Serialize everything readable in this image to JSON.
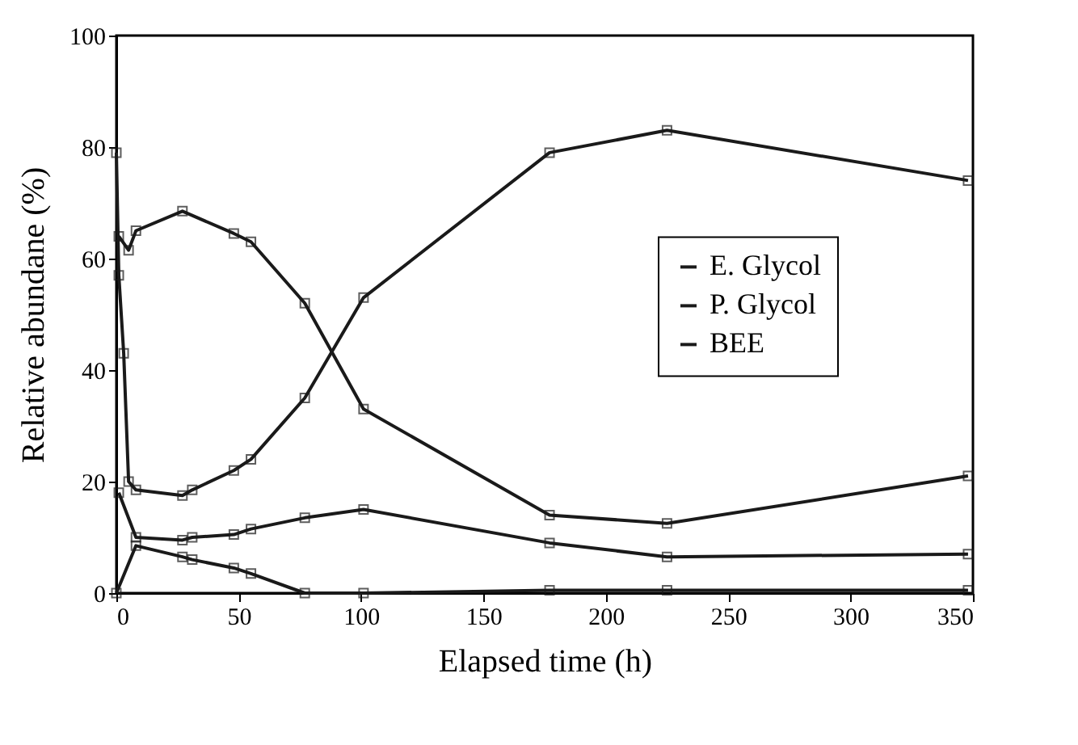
{
  "chart_data": {
    "type": "line",
    "xlabel": "Elapsed  time (h)",
    "ylabel": "Relative  abundane (%)",
    "xlim": [
      0,
      350
    ],
    "ylim": [
      0,
      100
    ],
    "xticks": [
      0,
      50,
      100,
      150,
      200,
      250,
      300,
      350
    ],
    "yticks": [
      0,
      20,
      40,
      60,
      80,
      100
    ],
    "grid": false,
    "legend": "right",
    "marker": "square",
    "line_style": "solid",
    "series": [
      {
        "name": "E. Glycol",
        "color": "#1a1a1a",
        "x": [
          1,
          5,
          8,
          27,
          48,
          55,
          77,
          101,
          177,
          225,
          348
        ],
        "values": [
          64,
          61.5,
          65,
          68.5,
          64.5,
          63,
          52,
          33,
          14,
          12.5,
          21
        ]
      },
      {
        "name": "P. Glycol",
        "color": "#1a1a1a",
        "x": [
          0,
          8,
          27,
          31,
          48,
          55,
          77,
          101,
          177,
          225,
          348
        ],
        "values": [
          0,
          8.5,
          6.5,
          6,
          4.5,
          3.5,
          0,
          0,
          0.5,
          0.5,
          0.5
        ]
      },
      {
        "name": "BEE",
        "color": "#1a1a1a",
        "x": [
          1,
          8,
          27,
          31,
          48,
          55,
          77,
          101,
          177,
          225,
          348
        ],
        "values": [
          18,
          10,
          9.5,
          10,
          10.5,
          11.5,
          13.5,
          15,
          9,
          6.5,
          7
        ]
      },
      {
        "color": "#1a1a1a",
        "x": [
          0,
          1,
          3,
          5,
          8,
          27,
          31,
          48,
          55,
          77,
          101,
          177,
          225,
          348
        ],
        "values": [
          79,
          57,
          43,
          20,
          18.5,
          17.5,
          18.5,
          22,
          24,
          35,
          53,
          79,
          83,
          74
        ]
      }
    ]
  }
}
